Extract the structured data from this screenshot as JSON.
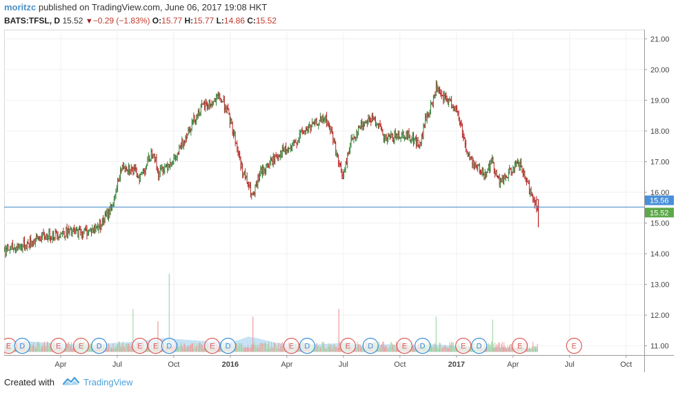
{
  "header": {
    "author": "moritzc",
    "published": " published on TradingView.com, June 06, 2017 19:08 HKT"
  },
  "quote": {
    "symbol": "BATS:TFSL, D",
    "last": "15.52",
    "change": "−0.29 (−1.83%)",
    "o_label": "O:",
    "o_value": "15.77",
    "h_label": "H:",
    "h_value": "15.77",
    "l_label": "L:",
    "l_value": "14.86",
    "c_label": "C:",
    "c_value": "15.52"
  },
  "footer": {
    "created_with": "Created with",
    "brand": "TradingView"
  },
  "colors": {
    "up": "#2e7d32",
    "down": "#b71c1c",
    "volume_area": "#b3d9f2",
    "price_line": "#3f86c6",
    "price_label_bg": "#4a90d9",
    "last_label_bg": "#5ca84a",
    "earnings": "#e05a5a",
    "dividend": "#3a8fd9"
  },
  "chart_data": {
    "type": "line",
    "subtype": "ohlc",
    "symbol": "BATS:TFSL",
    "interval": "D",
    "ylim": [
      10.7,
      21.3
    ],
    "yticks": [
      "21.00",
      "20.00",
      "19.00",
      "18.00",
      "17.00",
      "16.00",
      "15.00",
      "14.00",
      "13.00",
      "12.00",
      "11.00"
    ],
    "xlim": [
      2015.0,
      2017.83
    ],
    "xticks": [
      {
        "t": 2015.25,
        "label": "Apr"
      },
      {
        "t": 2015.5,
        "label": "Jul"
      },
      {
        "t": 2015.75,
        "label": "Oct"
      },
      {
        "t": 2016.0,
        "label": "2016"
      },
      {
        "t": 2016.25,
        "label": "Apr"
      },
      {
        "t": 2016.5,
        "label": "Jul"
      },
      {
        "t": 2016.75,
        "label": "Oct"
      },
      {
        "t": 2017.0,
        "label": "2017"
      },
      {
        "t": 2017.25,
        "label": "Apr"
      },
      {
        "t": 2017.5,
        "label": "Jul"
      },
      {
        "t": 2017.75,
        "label": "Oct"
      }
    ],
    "price_path": [
      [
        2015.0,
        14.1
      ],
      [
        2015.05,
        14.2
      ],
      [
        2015.1,
        14.3
      ],
      [
        2015.15,
        14.5
      ],
      [
        2015.2,
        14.6
      ],
      [
        2015.28,
        14.7
      ],
      [
        2015.35,
        14.7
      ],
      [
        2015.4,
        14.8
      ],
      [
        2015.43,
        15.0
      ],
      [
        2015.46,
        15.3
      ],
      [
        2015.49,
        15.8
      ],
      [
        2015.51,
        16.6
      ],
      [
        2015.53,
        16.9
      ],
      [
        2015.57,
        16.7
      ],
      [
        2015.6,
        16.5
      ],
      [
        2015.63,
        16.9
      ],
      [
        2015.66,
        17.4
      ],
      [
        2015.68,
        16.6
      ],
      [
        2015.72,
        16.9
      ],
      [
        2015.76,
        17.1
      ],
      [
        2015.8,
        17.8
      ],
      [
        2015.84,
        18.4
      ],
      [
        2015.88,
        18.8
      ],
      [
        2015.92,
        18.9
      ],
      [
        2015.95,
        19.1
      ],
      [
        2015.98,
        18.8
      ],
      [
        2016.02,
        17.8
      ],
      [
        2016.05,
        16.8
      ],
      [
        2016.08,
        16.2
      ],
      [
        2016.1,
        15.8
      ],
      [
        2016.13,
        16.6
      ],
      [
        2016.17,
        16.9
      ],
      [
        2016.22,
        17.3
      ],
      [
        2016.27,
        17.4
      ],
      [
        2016.31,
        17.9
      ],
      [
        2016.35,
        18.1
      ],
      [
        2016.39,
        18.3
      ],
      [
        2016.42,
        18.4
      ],
      [
        2016.45,
        17.9
      ],
      [
        2016.48,
        16.9
      ],
      [
        2016.5,
        16.5
      ],
      [
        2016.53,
        17.6
      ],
      [
        2016.57,
        18.1
      ],
      [
        2016.61,
        18.4
      ],
      [
        2016.65,
        18.3
      ],
      [
        2016.68,
        17.7
      ],
      [
        2016.72,
        17.8
      ],
      [
        2016.76,
        17.9
      ],
      [
        2016.8,
        17.8
      ],
      [
        2016.84,
        17.5
      ],
      [
        2016.86,
        18.3
      ],
      [
        2016.89,
        18.8
      ],
      [
        2016.91,
        19.4
      ],
      [
        2016.93,
        19.1
      ],
      [
        2016.96,
        19.0
      ],
      [
        2016.99,
        18.8
      ],
      [
        2017.02,
        18.2
      ],
      [
        2017.05,
        17.2
      ],
      [
        2017.08,
        16.9
      ],
      [
        2017.12,
        16.6
      ],
      [
        2017.16,
        17.0
      ],
      [
        2017.19,
        16.3
      ],
      [
        2017.22,
        16.5
      ],
      [
        2017.25,
        16.8
      ],
      [
        2017.28,
        16.9
      ],
      [
        2017.31,
        16.3
      ],
      [
        2017.34,
        15.8
      ],
      [
        2017.36,
        15.52
      ]
    ],
    "last_bar": {
      "t": 2017.362,
      "o": 15.77,
      "h": 15.77,
      "l": 14.86,
      "c": 15.52
    },
    "horizontal_line": 15.52,
    "price_labels": [
      {
        "value": 15.56,
        "text": "15.56"
      },
      {
        "value": 15.52,
        "text": "15.52"
      }
    ],
    "volume_path": [
      [
        2015.0,
        11.1
      ],
      [
        2015.1,
        11.15
      ],
      [
        2015.2,
        11.1
      ],
      [
        2015.3,
        11.05
      ],
      [
        2015.4,
        11.05
      ],
      [
        2015.5,
        11.1
      ],
      [
        2015.6,
        11.15
      ],
      [
        2015.7,
        11.25
      ],
      [
        2015.8,
        11.2
      ],
      [
        2015.9,
        11.15
      ],
      [
        2016.0,
        11.1
      ],
      [
        2016.08,
        11.3
      ],
      [
        2016.12,
        11.25
      ],
      [
        2016.2,
        11.1
      ],
      [
        2016.3,
        11.05
      ],
      [
        2016.4,
        11.05
      ],
      [
        2016.5,
        11.1
      ],
      [
        2016.6,
        11.0
      ],
      [
        2016.7,
        11.05
      ],
      [
        2016.8,
        11.0
      ],
      [
        2016.9,
        11.05
      ],
      [
        2017.0,
        11.0
      ],
      [
        2017.1,
        10.95
      ],
      [
        2017.2,
        10.95
      ],
      [
        2017.3,
        10.9
      ],
      [
        2017.36,
        10.9
      ]
    ],
    "volume_spikes": [
      {
        "t": 2015.57,
        "v": 12.2,
        "dir": "up"
      },
      {
        "t": 2015.73,
        "v": 13.35,
        "dir": "up"
      },
      {
        "t": 2015.68,
        "v": 11.8,
        "dir": "down"
      },
      {
        "t": 2016.1,
        "v": 11.95,
        "dir": "down"
      },
      {
        "t": 2016.48,
        "v": 12.2,
        "dir": "down"
      },
      {
        "t": 2016.91,
        "v": 11.95,
        "dir": "up"
      },
      {
        "t": 2017.16,
        "v": 11.85,
        "dir": "up"
      }
    ],
    "events": [
      {
        "t": 2015.02,
        "type": "E",
        "label": "E"
      },
      {
        "t": 2015.08,
        "type": "D",
        "label": "D"
      },
      {
        "t": 2015.24,
        "type": "E",
        "label": "E"
      },
      {
        "t": 2015.34,
        "type": "E",
        "label": "E"
      },
      {
        "t": 2015.42,
        "type": "D",
        "label": "D"
      },
      {
        "t": 2015.6,
        "type": "E",
        "label": "E"
      },
      {
        "t": 2015.67,
        "type": "E",
        "label": "E"
      },
      {
        "t": 2015.73,
        "type": "D",
        "label": "D"
      },
      {
        "t": 2015.92,
        "type": "E",
        "label": "E"
      },
      {
        "t": 2015.99,
        "type": "D",
        "label": "D"
      },
      {
        "t": 2016.27,
        "type": "E",
        "label": "E"
      },
      {
        "t": 2016.34,
        "type": "D",
        "label": "D"
      },
      {
        "t": 2016.52,
        "type": "E",
        "label": "E"
      },
      {
        "t": 2016.62,
        "type": "D",
        "label": "D"
      },
      {
        "t": 2016.77,
        "type": "E",
        "label": "E"
      },
      {
        "t": 2016.85,
        "type": "D",
        "label": "D"
      },
      {
        "t": 2017.03,
        "type": "E",
        "label": "E"
      },
      {
        "t": 2017.1,
        "type": "D",
        "label": "D"
      },
      {
        "t": 2017.28,
        "type": "E",
        "label": "E"
      },
      {
        "t": 2017.52,
        "type": "E",
        "label": "E"
      }
    ]
  }
}
